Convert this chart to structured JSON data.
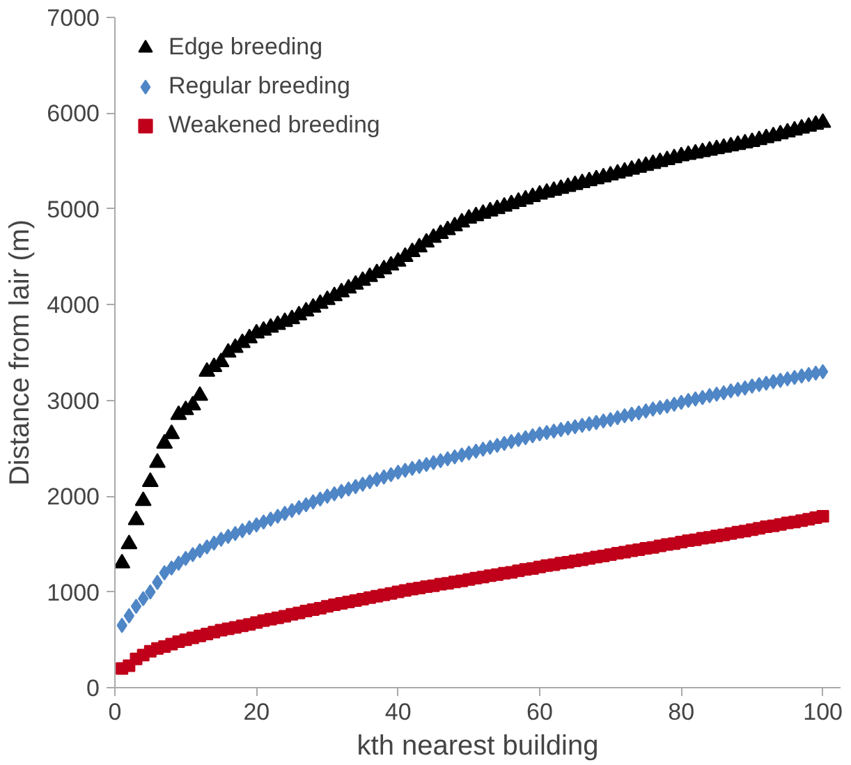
{
  "chart_data": {
    "type": "scatter",
    "xlabel": "kth nearest building",
    "ylabel": "Distance from lair (m)",
    "x": [
      1,
      2,
      3,
      4,
      5,
      6,
      7,
      8,
      9,
      10,
      11,
      12,
      13,
      14,
      15,
      16,
      17,
      18,
      19,
      20,
      21,
      22,
      23,
      24,
      25,
      26,
      27,
      28,
      29,
      30,
      31,
      32,
      33,
      34,
      35,
      36,
      37,
      38,
      39,
      40,
      41,
      42,
      43,
      44,
      45,
      46,
      47,
      48,
      49,
      50,
      51,
      52,
      53,
      54,
      55,
      56,
      57,
      58,
      59,
      60,
      61,
      62,
      63,
      64,
      65,
      66,
      67,
      68,
      69,
      70,
      71,
      72,
      73,
      74,
      75,
      76,
      77,
      78,
      79,
      80,
      81,
      82,
      83,
      84,
      85,
      86,
      87,
      88,
      89,
      90,
      91,
      92,
      93,
      94,
      95,
      96,
      97,
      98,
      99,
      100
    ],
    "series": [
      {
        "name": "Edge breeding",
        "color": "#000000",
        "marker": "triangle",
        "values": [
          1300,
          1500,
          1750,
          1950,
          2150,
          2350,
          2550,
          2650,
          2850,
          2900,
          2950,
          3050,
          3300,
          3350,
          3400,
          3500,
          3550,
          3600,
          3650,
          3700,
          3730,
          3760,
          3790,
          3820,
          3850,
          3890,
          3930,
          3970,
          4010,
          4050,
          4090,
          4130,
          4170,
          4210,
          4250,
          4290,
          4330,
          4370,
          4410,
          4450,
          4500,
          4550,
          4600,
          4650,
          4700,
          4740,
          4780,
          4820,
          4860,
          4900,
          4925,
          4950,
          4975,
          5000,
          5025,
          5050,
          5075,
          5100,
          5125,
          5150,
          5170,
          5190,
          5210,
          5230,
          5250,
          5270,
          5290,
          5310,
          5330,
          5350,
          5370,
          5390,
          5410,
          5430,
          5450,
          5470,
          5490,
          5510,
          5530,
          5550,
          5565,
          5580,
          5595,
          5610,
          5625,
          5640,
          5655,
          5670,
          5685,
          5700,
          5720,
          5740,
          5760,
          5780,
          5800,
          5820,
          5840,
          5860,
          5880,
          5900
        ]
      },
      {
        "name": "Regular breeding",
        "color": "#4f86c6",
        "marker": "diamond",
        "values": [
          650,
          750,
          850,
          930,
          1000,
          1100,
          1200,
          1250,
          1300,
          1350,
          1390,
          1430,
          1470,
          1510,
          1550,
          1580,
          1610,
          1640,
          1670,
          1700,
          1730,
          1760,
          1790,
          1820,
          1850,
          1880,
          1910,
          1940,
          1970,
          2000,
          2025,
          2050,
          2075,
          2100,
          2125,
          2150,
          2175,
          2200,
          2225,
          2250,
          2270,
          2290,
          2310,
          2330,
          2350,
          2370,
          2390,
          2410,
          2430,
          2450,
          2470,
          2490,
          2510,
          2530,
          2550,
          2570,
          2590,
          2610,
          2630,
          2650,
          2665,
          2680,
          2695,
          2710,
          2725,
          2740,
          2755,
          2770,
          2785,
          2800,
          2820,
          2840,
          2855,
          2870,
          2890,
          2910,
          2925,
          2940,
          2960,
          2980,
          3000,
          3015,
          3030,
          3050,
          3065,
          3080,
          3100,
          3115,
          3130,
          3150,
          3165,
          3180,
          3195,
          3210,
          3225,
          3240,
          3255,
          3270,
          3285,
          3300
        ]
      },
      {
        "name": "Weakened breeding",
        "color": "#c0001a",
        "marker": "square",
        "values": [
          200,
          230,
          300,
          340,
          380,
          410,
          430,
          455,
          480,
          500,
          520,
          540,
          560,
          580,
          600,
          615,
          630,
          645,
          660,
          680,
          700,
          715,
          730,
          745,
          765,
          780,
          800,
          815,
          830,
          850,
          865,
          880,
          895,
          910,
          925,
          940,
          955,
          970,
          985,
          1000,
          1015,
          1030,
          1040,
          1055,
          1065,
          1080,
          1090,
          1105,
          1115,
          1130,
          1145,
          1155,
          1170,
          1180,
          1195,
          1205,
          1220,
          1235,
          1245,
          1260,
          1275,
          1285,
          1300,
          1310,
          1325,
          1335,
          1350,
          1365,
          1375,
          1390,
          1405,
          1415,
          1430,
          1440,
          1455,
          1465,
          1480,
          1495,
          1505,
          1520,
          1535,
          1545,
          1560,
          1570,
          1585,
          1595,
          1610,
          1625,
          1635,
          1650,
          1665,
          1680,
          1690,
          1705,
          1720,
          1730,
          1745,
          1760,
          1775,
          1790
        ]
      }
    ],
    "xlim": [
      0,
      102.5
    ],
    "ylim": [
      0,
      7000
    ],
    "xticks": [
      0,
      20,
      40,
      60,
      80,
      100
    ],
    "yticks": [
      0,
      1000,
      2000,
      3000,
      4000,
      5000,
      6000,
      7000
    ],
    "grid": false,
    "legend": "top left"
  }
}
